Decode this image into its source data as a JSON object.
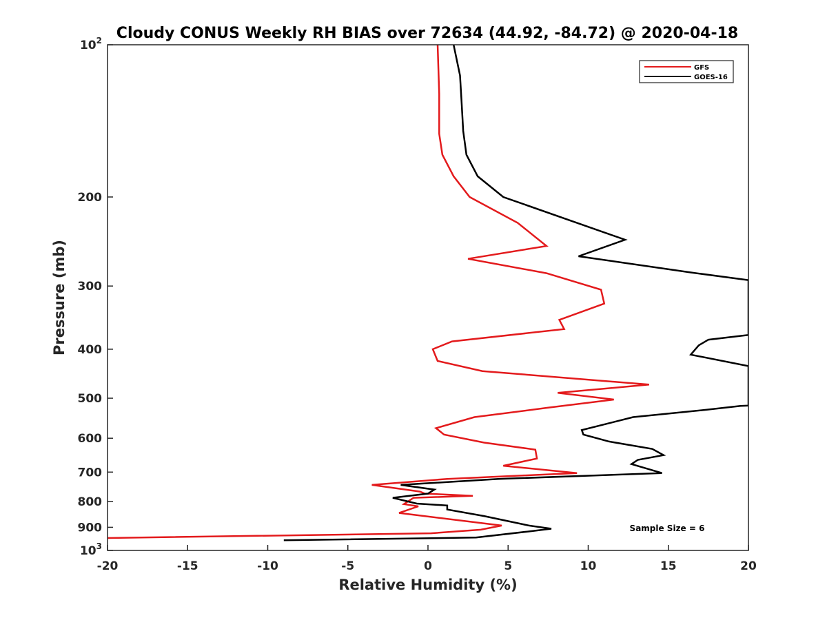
{
  "chart_data": {
    "type": "line",
    "title": "Cloudy CONUS Weekly RH BIAS over 72634 (44.92, -84.72) @ 2020-04-18",
    "xlabel": "Relative Humidity (%)",
    "ylabel": "Pressure (mb)",
    "xlim": [
      -20,
      20
    ],
    "ylim": [
      100,
      1000
    ],
    "yscale": "log",
    "y_reversed": true,
    "grid": false,
    "legend_position": "top-right",
    "annotation": "Sample Size = 6",
    "x_ticks": [
      {
        "value": -20,
        "label": "-20"
      },
      {
        "value": -15,
        "label": "-15"
      },
      {
        "value": -10,
        "label": "-10"
      },
      {
        "value": -5,
        "label": "-5"
      },
      {
        "value": 0,
        "label": "0"
      },
      {
        "value": 5,
        "label": "5"
      },
      {
        "value": 10,
        "label": "10"
      },
      {
        "value": 15,
        "label": "15"
      },
      {
        "value": 20,
        "label": "20"
      }
    ],
    "y_ticks": [
      {
        "value": 100,
        "base": "10",
        "exp": "2"
      },
      {
        "value": 200,
        "base": "200",
        "exp": ""
      },
      {
        "value": 300,
        "base": "300",
        "exp": ""
      },
      {
        "value": 400,
        "base": "400",
        "exp": ""
      },
      {
        "value": 500,
        "base": "500",
        "exp": ""
      },
      {
        "value": 600,
        "base": "600",
        "exp": ""
      },
      {
        "value": 700,
        "base": "700",
        "exp": ""
      },
      {
        "value": 800,
        "base": "800",
        "exp": ""
      },
      {
        "value": 900,
        "base": "900",
        "exp": ""
      },
      {
        "value": 1000,
        "base": "10",
        "exp": "3"
      }
    ],
    "series": [
      {
        "name": "GFS",
        "color": "#e31a1c",
        "points": [
          [
            0.6,
            100
          ],
          [
            0.7,
            125
          ],
          [
            0.7,
            150
          ],
          [
            0.9,
            165
          ],
          [
            1.6,
            182
          ],
          [
            2.6,
            200
          ],
          [
            5.6,
            225
          ],
          [
            7.4,
            250
          ],
          [
            2.5,
            265
          ],
          [
            7.4,
            283
          ],
          [
            10.8,
            305
          ],
          [
            11.0,
            325
          ],
          [
            8.2,
            350
          ],
          [
            8.5,
            365
          ],
          [
            1.5,
            386
          ],
          [
            0.3,
            400
          ],
          [
            0.6,
            422
          ],
          [
            3.4,
            442
          ],
          [
            13.8,
            470
          ],
          [
            8.1,
            488
          ],
          [
            11.6,
            503
          ],
          [
            7.5,
            522
          ],
          [
            2.9,
            545
          ],
          [
            0.5,
            573
          ],
          [
            1.0,
            590
          ],
          [
            3.5,
            612
          ],
          [
            6.7,
            632
          ],
          [
            6.8,
            658
          ],
          [
            4.7,
            680
          ],
          [
            9.3,
            703
          ],
          [
            1.2,
            722
          ],
          [
            -3.5,
            742
          ],
          [
            -0.5,
            765
          ],
          [
            -0.2,
            772
          ],
          [
            2.8,
            780
          ],
          [
            -0.9,
            787
          ],
          [
            -1.5,
            810
          ],
          [
            -0.6,
            818
          ],
          [
            -1.8,
            843
          ],
          [
            4.6,
            893
          ],
          [
            3.3,
            910
          ],
          [
            0.2,
            925
          ],
          [
            -20.0,
            945
          ]
        ]
      },
      {
        "name": "GOES-16",
        "color": "#000000",
        "points": [
          [
            1.6,
            100
          ],
          [
            2.0,
            115
          ],
          [
            2.1,
            130
          ],
          [
            2.2,
            148
          ],
          [
            2.4,
            165
          ],
          [
            3.1,
            182
          ],
          [
            4.7,
            200
          ],
          [
            12.3,
            243
          ],
          [
            9.4,
            262
          ],
          [
            16.4,
            282
          ],
          [
            20.0,
            292
          ],
          [
            20.0,
            375
          ],
          [
            17.5,
            383
          ],
          [
            16.9,
            393
          ],
          [
            16.4,
            410
          ],
          [
            20.0,
            432
          ],
          [
            20.0,
            517
          ],
          [
            19.5,
            518
          ],
          [
            17.4,
            527
          ],
          [
            12.8,
            545
          ],
          [
            9.6,
            578
          ],
          [
            9.7,
            590
          ],
          [
            11.3,
            609
          ],
          [
            14.0,
            630
          ],
          [
            14.7,
            648
          ],
          [
            13.1,
            662
          ],
          [
            12.7,
            675
          ],
          [
            14.6,
            703
          ],
          [
            4.4,
            722
          ],
          [
            -1.7,
            742
          ],
          [
            0.4,
            758
          ],
          [
            0.0,
            772
          ],
          [
            -2.2,
            787
          ],
          [
            -0.7,
            808
          ],
          [
            1.2,
            815
          ],
          [
            1.2,
            830
          ],
          [
            3.5,
            855
          ],
          [
            6.3,
            893
          ],
          [
            7.7,
            906
          ],
          [
            6.2,
            918
          ],
          [
            3.0,
            943
          ],
          [
            -9.0,
            955
          ]
        ]
      }
    ]
  }
}
